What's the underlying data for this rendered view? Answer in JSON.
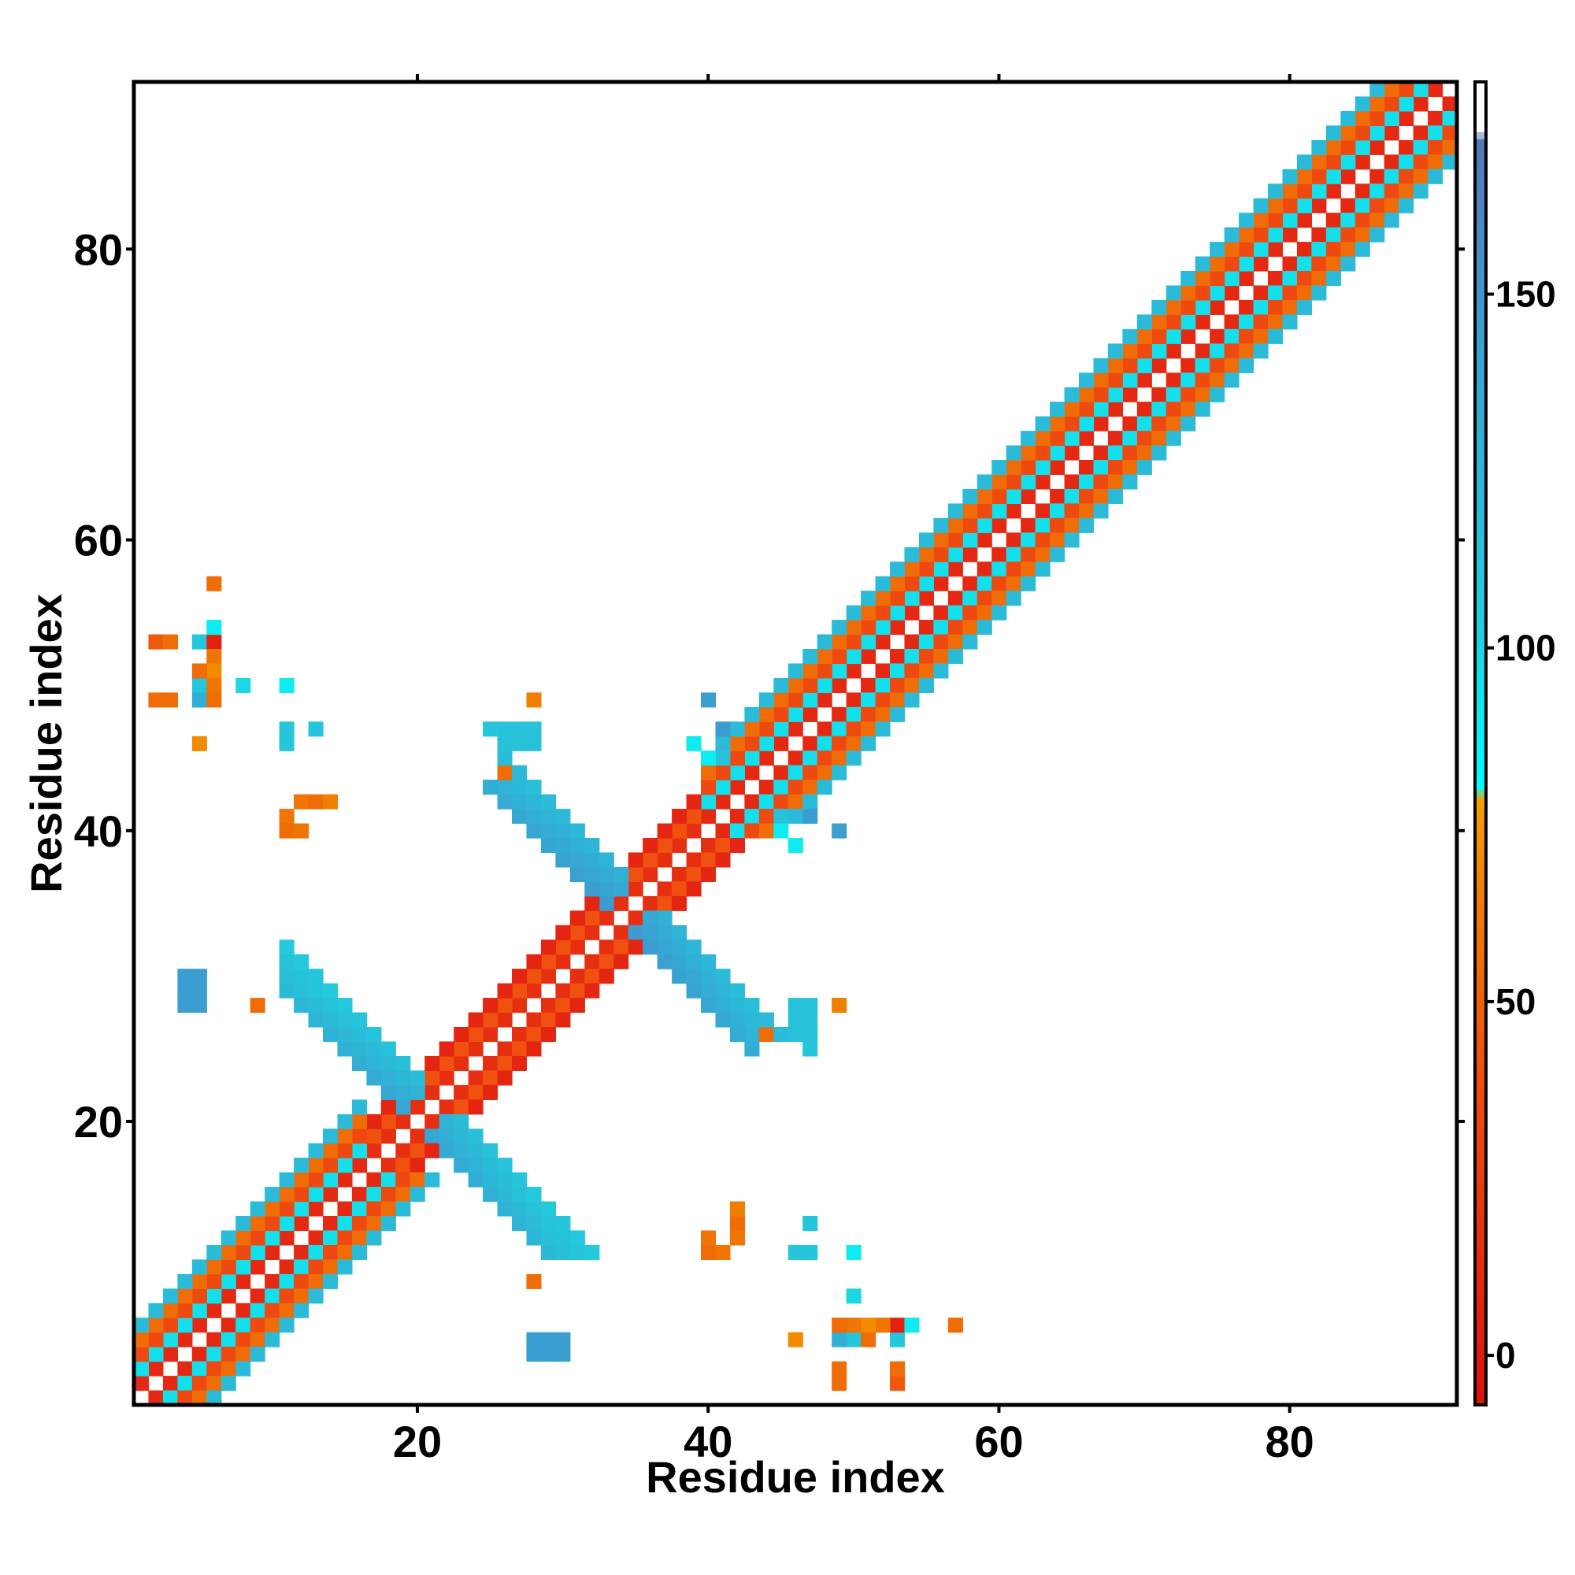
{
  "chart_data": {
    "type": "heatmap",
    "title": "",
    "xlabel": "Residue index",
    "ylabel": "Residue index",
    "xlim": [
      0.5,
      91.5
    ],
    "ylim": [
      0.5,
      91.5
    ],
    "xticks": [
      20,
      40,
      60,
      80
    ],
    "yticks": [
      20,
      40,
      60,
      80
    ],
    "colorbar": {
      "range": [
        -7,
        180
      ],
      "ticks": [
        0,
        50,
        100,
        150
      ],
      "stops": [
        {
          "value": -7,
          "color": "#dd1111"
        },
        {
          "value": 40,
          "color": "#f05010"
        },
        {
          "value": 66,
          "color": "#f08000"
        },
        {
          "value": 79,
          "color": "#f5a000"
        },
        {
          "value": 80,
          "color": "#00ffff"
        },
        {
          "value": 105,
          "color": "#22ccdd"
        },
        {
          "value": 145,
          "color": "#3a9fd0"
        },
        {
          "value": 172,
          "color": "#5577b5"
        },
        {
          "value": 173,
          "color": "#ffffff"
        },
        {
          "value": 180,
          "color": "#ffffff"
        }
      ]
    },
    "grid": false,
    "diagonal_helix_pattern": [
      {
        "offset": 1,
        "value": 10
      },
      {
        "offset": 2,
        "value": 95
      },
      {
        "offset": 3,
        "value": 35
      },
      {
        "offset": 4,
        "value": 55
      },
      {
        "offset": 5,
        "value": 120
      }
    ],
    "diagonal_strand_ranges": [
      [
        17,
        39
      ]
    ],
    "antidiagonal_bands": [
      {
        "sum": 40,
        "from": 18,
        "to": 22,
        "width": 4,
        "value": 140
      },
      {
        "sum": 68,
        "from": 32,
        "to": 36,
        "width": 4,
        "value": 150
      }
    ],
    "antidiagonal_extents": [
      {
        "sum": 40,
        "i_min": 11,
        "i_max": 29
      },
      {
        "sum": 68,
        "i_min": 26,
        "i_max": 43
      }
    ],
    "sparse_cells": [
      {
        "x": 6,
        "y": 57,
        "value": 60
      },
      {
        "x": 2,
        "y": 53,
        "value": 45
      },
      {
        "x": 5,
        "y": 53,
        "value": 100
      },
      {
        "x": 6,
        "y": 53,
        "value": 5
      },
      {
        "x": 6,
        "y": 54,
        "value": 85
      },
      {
        "x": 6,
        "y": 52,
        "value": 60
      },
      {
        "x": 6,
        "y": 51,
        "value": 100
      },
      {
        "x": 5,
        "y": 50,
        "value": 60
      },
      {
        "x": 6,
        "y": 50,
        "value": 45
      },
      {
        "x": 8,
        "y": 50,
        "value": 100
      },
      {
        "x": 11,
        "y": 50,
        "value": 85
      },
      {
        "x": 2,
        "y": 49,
        "value": 55
      },
      {
        "x": 5,
        "y": 49,
        "value": 130
      },
      {
        "x": 6,
        "y": 49,
        "value": 60
      },
      {
        "x": 5,
        "y": 46,
        "value": 70
      },
      {
        "x": 11,
        "y": 47,
        "value": 110
      },
      {
        "x": 11,
        "y": 46,
        "value": 110
      },
      {
        "x": 13,
        "y": 47,
        "value": 110
      },
      {
        "x": 12,
        "y": 42,
        "value": 60
      },
      {
        "x": 13,
        "y": 42,
        "value": 60
      },
      {
        "x": 11,
        "y": 41,
        "value": 45
      },
      {
        "x": 11,
        "y": 40,
        "value": 60
      },
      {
        "x": 12,
        "y": 40,
        "value": 60
      },
      {
        "x": 4,
        "y": 30,
        "value": 145
      },
      {
        "x": 5,
        "y": 30,
        "value": 145
      },
      {
        "x": 4,
        "y": 29,
        "value": 145
      },
      {
        "x": 5,
        "y": 29,
        "value": 145
      },
      {
        "x": 4,
        "y": 28,
        "value": 160
      },
      {
        "x": 5,
        "y": 28,
        "value": 140
      },
      {
        "x": 9,
        "y": 28,
        "value": 65
      },
      {
        "x": 28,
        "y": 49,
        "value": 65
      },
      {
        "x": 25,
        "y": 47,
        "value": 90
      },
      {
        "x": 26,
        "y": 47,
        "value": 115
      },
      {
        "x": 27,
        "y": 47,
        "value": 115
      },
      {
        "x": 26,
        "y": 46,
        "value": 115
      },
      {
        "x": 27,
        "y": 46,
        "value": 115
      },
      {
        "x": 28,
        "y": 46,
        "value": 115
      },
      {
        "x": 26,
        "y": 44,
        "value": 65
      },
      {
        "x": 40,
        "y": 49,
        "value": 145
      },
      {
        "x": 39,
        "y": 46,
        "value": 90
      },
      {
        "x": 45,
        "y": 41,
        "value": 115
      },
      {
        "x": 47,
        "y": 41,
        "value": 145
      },
      {
        "x": 45,
        "y": 40,
        "value": 90
      },
      {
        "x": 46,
        "y": 28,
        "value": 115
      },
      {
        "x": 47,
        "y": 28,
        "value": 115
      },
      {
        "x": 49,
        "y": 28,
        "value": 65
      },
      {
        "x": 44,
        "y": 26,
        "value": 55
      },
      {
        "x": 46,
        "y": 27,
        "value": 115
      },
      {
        "x": 47,
        "y": 27,
        "value": 115
      },
      {
        "x": 46,
        "y": 26,
        "value": 115
      },
      {
        "x": 47,
        "y": 26,
        "value": 115
      },
      {
        "x": 47,
        "y": 25,
        "value": 110
      },
      {
        "x": 28,
        "y": 9,
        "value": 55
      },
      {
        "x": 42,
        "y": 14,
        "value": 65
      },
      {
        "x": 42,
        "y": 13,
        "value": 55
      },
      {
        "x": 40,
        "y": 12,
        "value": 60
      },
      {
        "x": 40,
        "y": 11,
        "value": 55
      },
      {
        "x": 41,
        "y": 11,
        "value": 60
      },
      {
        "x": 47,
        "y": 13,
        "value": 110
      },
      {
        "x": 46,
        "y": 11,
        "value": 110
      },
      {
        "x": 47,
        "y": 11,
        "value": 110
      },
      {
        "x": 50,
        "y": 11,
        "value": 90
      },
      {
        "x": 50,
        "y": 8,
        "value": 100
      },
      {
        "x": 49,
        "y": 6,
        "value": 55
      },
      {
        "x": 50,
        "y": 6,
        "value": 60
      },
      {
        "x": 51,
        "y": 6,
        "value": 70
      },
      {
        "x": 52,
        "y": 6,
        "value": 60
      },
      {
        "x": 53,
        "y": 6,
        "value": 5
      },
      {
        "x": 54,
        "y": 6,
        "value": 90
      },
      {
        "x": 57,
        "y": 6,
        "value": 55
      },
      {
        "x": 46,
        "y": 5,
        "value": 70
      },
      {
        "x": 50,
        "y": 5,
        "value": 110
      },
      {
        "x": 51,
        "y": 5,
        "value": 55
      },
      {
        "x": 53,
        "y": 5,
        "value": 110
      },
      {
        "x": 49,
        "y": 3,
        "value": 55
      },
      {
        "x": 53,
        "y": 3,
        "value": 55
      },
      {
        "x": 28,
        "y": 5,
        "value": 145
      },
      {
        "x": 29,
        "y": 5,
        "value": 145
      },
      {
        "x": 30,
        "y": 5,
        "value": 145
      },
      {
        "x": 28,
        "y": 4,
        "value": 145
      },
      {
        "x": 29,
        "y": 4,
        "value": 145
      },
      {
        "x": 30,
        "y": 4,
        "value": 145
      }
    ]
  }
}
